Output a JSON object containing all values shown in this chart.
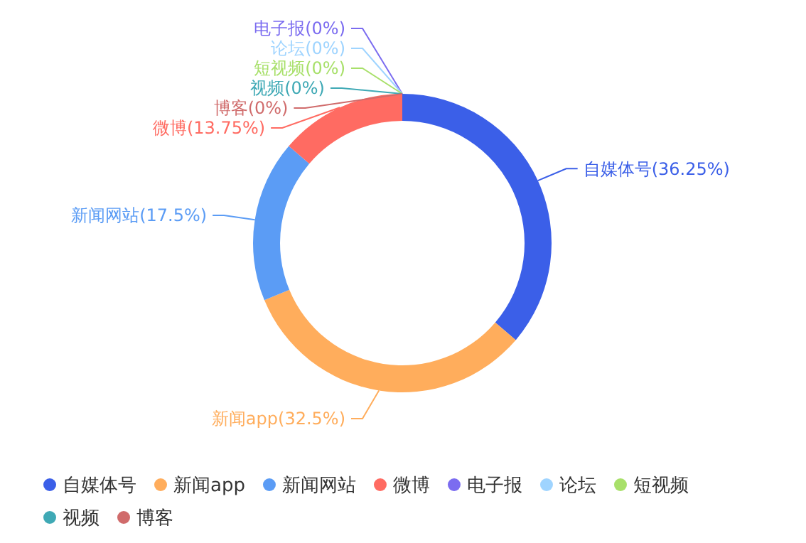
{
  "chart_data": {
    "type": "donut",
    "categories": [
      "自媒体号",
      "新闻app",
      "新闻网站",
      "微博",
      "电子报",
      null,
      "论坛",
      "短视频",
      "视频",
      "博客"
    ],
    "values": [
      36.25,
      32.5,
      17.5,
      13.75,
      0,
      0,
      0,
      0,
      0,
      0
    ],
    "colors": [
      "#3b5fe8",
      "#ffad5c",
      "#5b9cf5",
      "#ff6b62",
      "#7b6cf0",
      "#3cc470",
      "#9fd4ff",
      "#a8e06a",
      "#3fa9b5",
      "#d06b6b"
    ],
    "value_labels": [
      "自媒体号(36.25%)",
      "新闻app(32.5%)",
      "新闻网站(17.5%)",
      "微博(13.75%)",
      "电子报(0%)",
      null,
      "论坛(0%)",
      "短视频(0%)",
      "视频(0%)",
      "博客(0%)"
    ],
    "legend": "bottom"
  }
}
